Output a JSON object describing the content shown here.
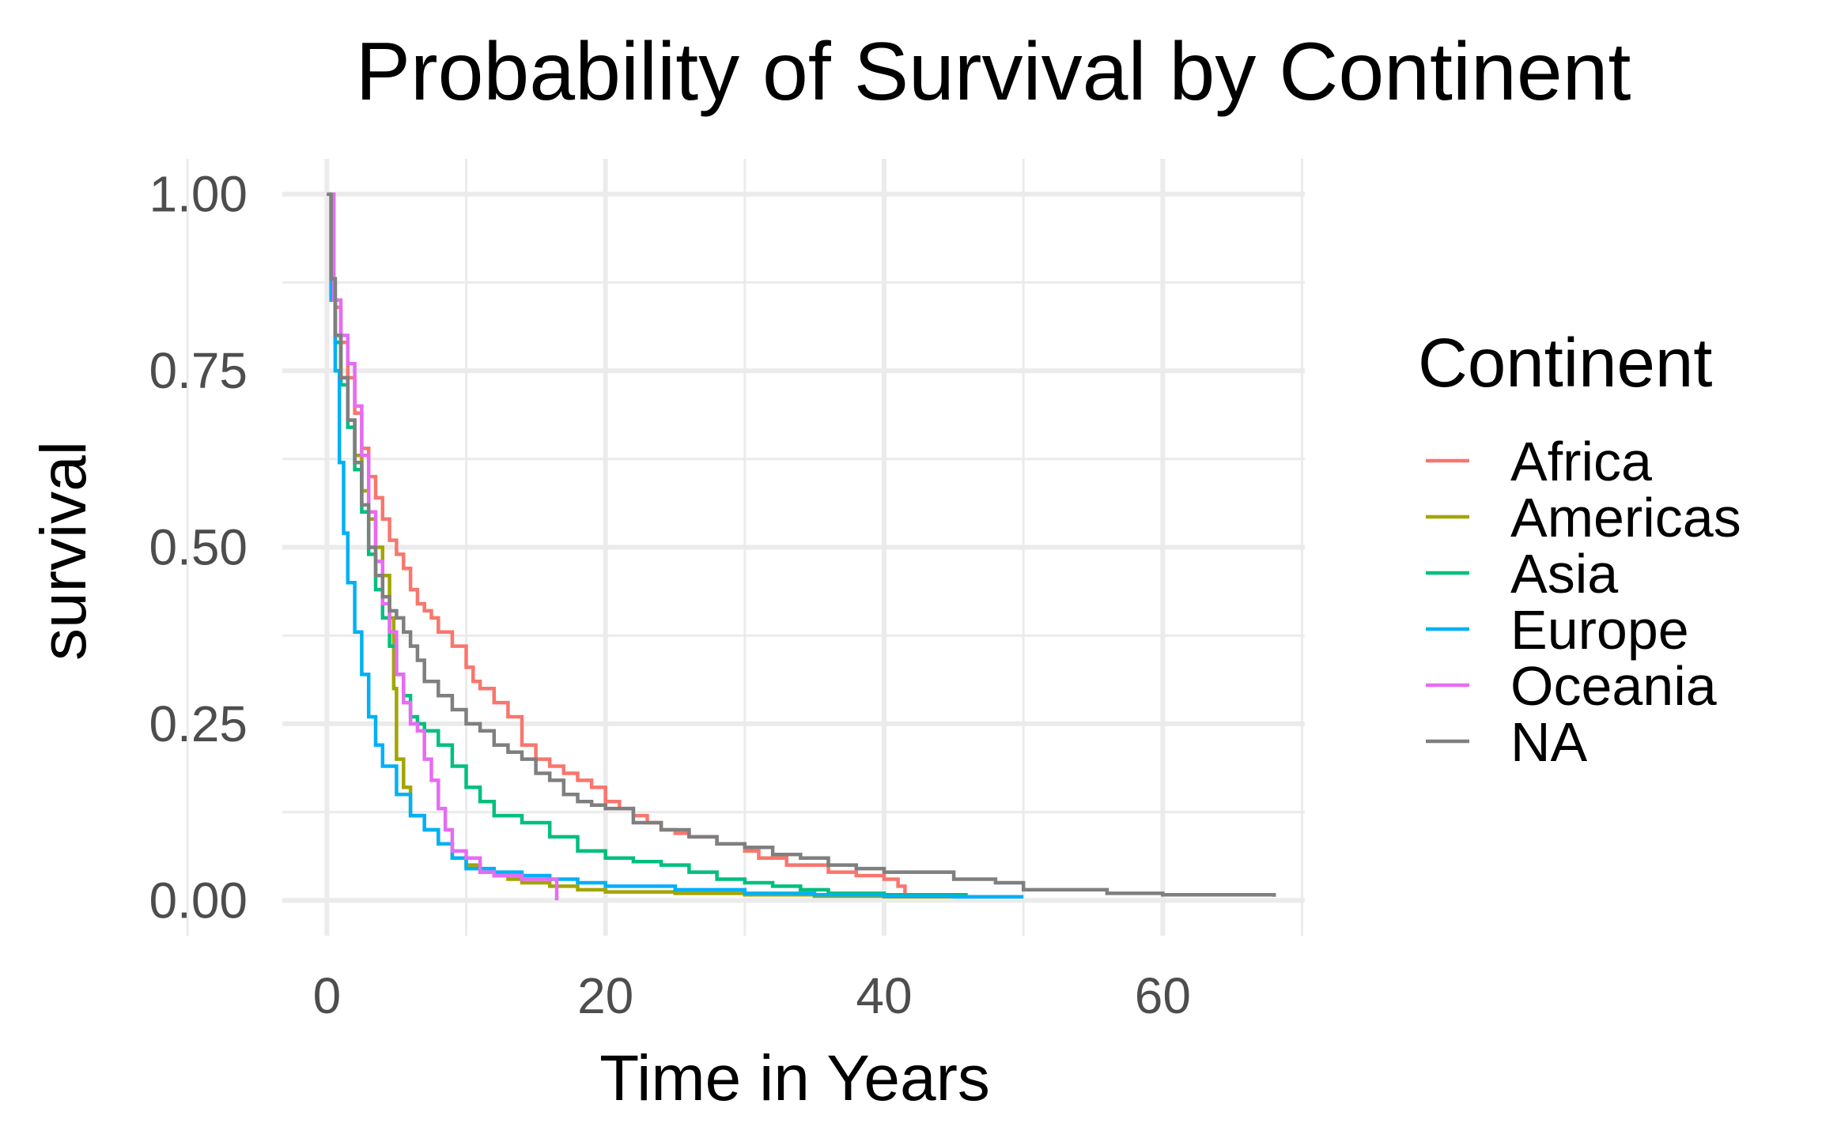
{
  "chart_data": {
    "type": "line",
    "step": true,
    "title": "Probability of Survival by Continent",
    "xlabel": "Time in Years",
    "ylabel": "survival",
    "xlim": [
      -3.2,
      70.2
    ],
    "ylim": [
      -0.05,
      1.05
    ],
    "xticks": [
      0,
      20,
      40,
      60
    ],
    "xtick_labels": [
      "0",
      "20",
      "40",
      "60"
    ],
    "yticks": [
      0,
      0.25,
      0.5,
      0.75,
      1.0
    ],
    "ytick_labels": [
      "0.00",
      "0.25",
      "0.50",
      "0.75",
      "1.00"
    ],
    "grid": true,
    "legend": {
      "title": "Continent",
      "position": "right"
    },
    "series": [
      {
        "name": "Africa",
        "color": "#F8766D",
        "x": [
          0,
          0.3,
          0.6,
          1,
          1.5,
          2,
          2.5,
          3,
          3.5,
          4,
          4.5,
          5,
          5.5,
          6,
          6.5,
          7,
          7.5,
          8,
          9,
          10,
          10.5,
          11,
          12,
          13,
          14,
          15,
          16,
          17,
          18,
          19,
          20,
          21,
          22,
          23,
          24,
          25,
          26,
          28,
          30,
          31,
          33,
          36,
          38,
          40,
          41,
          41.5
        ],
        "y": [
          1.0,
          0.88,
          0.84,
          0.79,
          0.74,
          0.69,
          0.64,
          0.6,
          0.57,
          0.54,
          0.51,
          0.49,
          0.47,
          0.44,
          0.42,
          0.41,
          0.4,
          0.38,
          0.36,
          0.33,
          0.31,
          0.3,
          0.28,
          0.26,
          0.22,
          0.2,
          0.19,
          0.18,
          0.17,
          0.16,
          0.14,
          0.13,
          0.12,
          0.11,
          0.1,
          0.095,
          0.09,
          0.08,
          0.07,
          0.06,
          0.05,
          0.04,
          0.035,
          0.03,
          0.02,
          0.01
        ]
      },
      {
        "name": "Americas",
        "color": "#A3A500",
        "x": [
          0,
          0.3,
          0.6,
          1,
          1.5,
          2,
          2.5,
          3,
          3.5,
          4,
          4.5,
          4.8,
          5,
          5.5,
          6,
          7,
          8,
          9,
          10,
          11,
          12,
          13,
          14,
          16,
          18,
          20,
          25,
          30,
          35,
          40,
          46
        ],
        "y": [
          1.0,
          0.86,
          0.8,
          0.74,
          0.68,
          0.63,
          0.58,
          0.54,
          0.5,
          0.46,
          0.4,
          0.3,
          0.2,
          0.16,
          0.12,
          0.1,
          0.08,
          0.06,
          0.05,
          0.04,
          0.035,
          0.03,
          0.025,
          0.02,
          0.015,
          0.012,
          0.01,
          0.008,
          0.006,
          0.005,
          0.005
        ]
      },
      {
        "name": "Asia",
        "color": "#00BF7D",
        "x": [
          0,
          0.3,
          0.6,
          1,
          1.5,
          2,
          2.5,
          3,
          3.5,
          4,
          4.5,
          5,
          5.5,
          6,
          6.5,
          7,
          8,
          9,
          10,
          11,
          12,
          14,
          16,
          18,
          20,
          22,
          24,
          26,
          28,
          30,
          32,
          34,
          36,
          40,
          46
        ],
        "y": [
          1.0,
          0.85,
          0.79,
          0.73,
          0.67,
          0.61,
          0.55,
          0.49,
          0.44,
          0.4,
          0.36,
          0.32,
          0.29,
          0.26,
          0.25,
          0.24,
          0.22,
          0.19,
          0.16,
          0.14,
          0.12,
          0.11,
          0.09,
          0.07,
          0.06,
          0.055,
          0.05,
          0.04,
          0.03,
          0.025,
          0.02,
          0.015,
          0.01,
          0.008,
          0.008
        ]
      },
      {
        "name": "Europe",
        "color": "#00B0F6",
        "x": [
          0,
          0.3,
          0.6,
          0.9,
          1.2,
          1.5,
          2,
          2.5,
          3,
          3.5,
          4,
          5,
          6,
          7,
          8,
          9,
          10,
          12,
          14,
          16,
          18,
          20,
          25,
          30,
          35,
          40,
          45,
          50
        ],
        "y": [
          1.0,
          0.85,
          0.75,
          0.62,
          0.52,
          0.45,
          0.38,
          0.32,
          0.26,
          0.22,
          0.19,
          0.15,
          0.12,
          0.1,
          0.08,
          0.06,
          0.045,
          0.04,
          0.035,
          0.03,
          0.025,
          0.02,
          0.015,
          0.01,
          0.008,
          0.006,
          0.005,
          0.005
        ]
      },
      {
        "name": "Oceania",
        "color": "#E76BF3",
        "x": [
          0,
          0.5,
          1,
          1.5,
          2,
          2.5,
          3,
          3.5,
          4,
          4.5,
          5,
          5.5,
          6,
          6.5,
          7,
          7.5,
          8,
          8.5,
          9,
          10,
          11,
          12,
          14,
          16,
          16.5
        ],
        "y": [
          1.0,
          0.85,
          0.8,
          0.76,
          0.7,
          0.63,
          0.55,
          0.48,
          0.42,
          0.38,
          0.32,
          0.28,
          0.25,
          0.24,
          0.2,
          0.17,
          0.13,
          0.1,
          0.07,
          0.06,
          0.04,
          0.035,
          0.03,
          0.03,
          0.0
        ]
      },
      {
        "name": "NA",
        "color": "#7F7F7F",
        "x": [
          0,
          0.3,
          0.6,
          1,
          1.5,
          2,
          2.5,
          3,
          3.5,
          4,
          4.5,
          5,
          5.5,
          6,
          6.5,
          7,
          8,
          9,
          10,
          11,
          12,
          13,
          14,
          15,
          16,
          17,
          18,
          19,
          20,
          22,
          24,
          26,
          28,
          30,
          32,
          34,
          36,
          38,
          40,
          45,
          48,
          50,
          56,
          60,
          68
        ],
        "y": [
          1.0,
          0.88,
          0.8,
          0.74,
          0.68,
          0.62,
          0.56,
          0.5,
          0.46,
          0.43,
          0.41,
          0.4,
          0.38,
          0.36,
          0.34,
          0.31,
          0.29,
          0.27,
          0.25,
          0.24,
          0.22,
          0.21,
          0.2,
          0.18,
          0.17,
          0.15,
          0.14,
          0.135,
          0.13,
          0.11,
          0.1,
          0.09,
          0.08,
          0.075,
          0.065,
          0.06,
          0.05,
          0.045,
          0.04,
          0.03,
          0.025,
          0.015,
          0.01,
          0.008,
          0.005
        ]
      }
    ]
  }
}
